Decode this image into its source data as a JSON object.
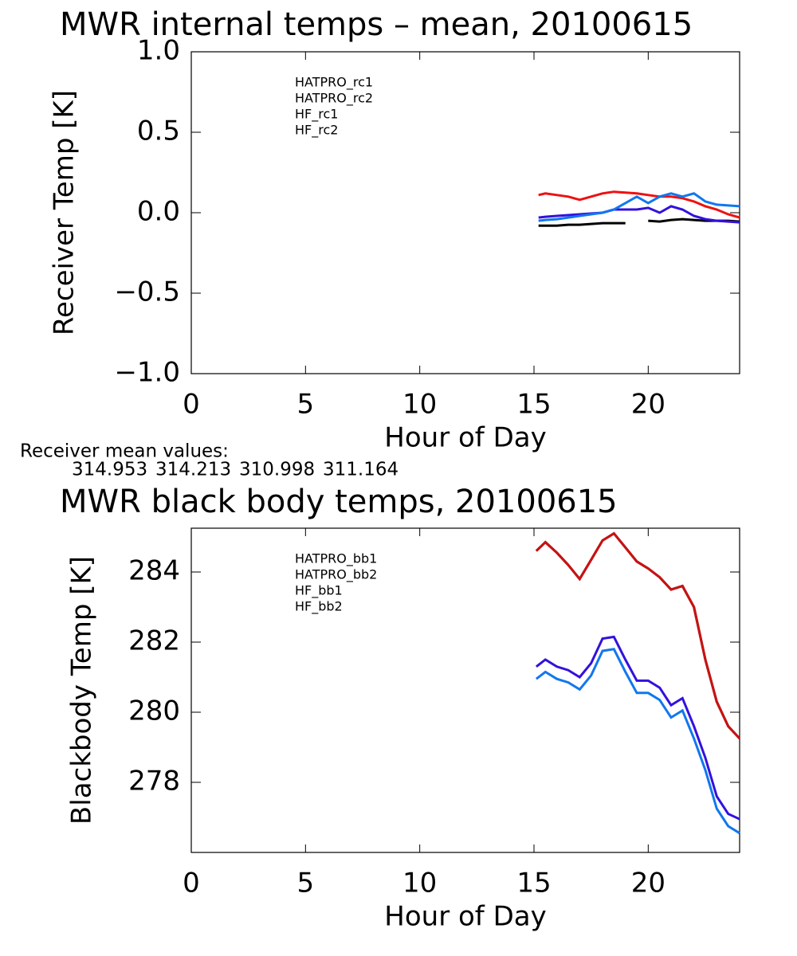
{
  "chart_data": [
    {
      "type": "line",
      "title": "MWR internal temps – mean, 20100615",
      "xlabel": "Hour of Day",
      "ylabel": "Receiver Temp [K]",
      "xlim": [
        0,
        24
      ],
      "xticks": [
        0,
        5,
        10,
        15,
        20
      ],
      "ylim": [
        -1.0,
        1.0
      ],
      "yticks": [
        {
          "value": 1.0,
          "label": "1.0"
        },
        0.5,
        {
          "value": 0.0,
          "label": "0.0"
        },
        {
          "value": -0.5,
          "label": "−0.5"
        },
        {
          "value": -1.0,
          "label": "−1.0"
        }
      ],
      "x": [
        15.2,
        15.5,
        16,
        16.5,
        17,
        17.5,
        18,
        18.5,
        19,
        19.5,
        20,
        20.5,
        21,
        21.5,
        22,
        22.5,
        23,
        23.5,
        24
      ],
      "series": [
        {
          "name": "HATPRO_rc1",
          "color": "#000000",
          "values": [
            -0.08,
            -0.08,
            -0.08,
            -0.075,
            -0.075,
            -0.07,
            -0.065,
            -0.065,
            -0.065,
            null,
            -0.05,
            -0.055,
            -0.045,
            -0.04,
            -0.045,
            -0.05,
            -0.05,
            -0.05,
            -0.055
          ]
        },
        {
          "name": "HATPRO_rc2",
          "color": "#ee1111",
          "values": [
            0.11,
            0.12,
            0.11,
            0.1,
            0.08,
            0.1,
            0.12,
            0.13,
            0.125,
            0.12,
            0.11,
            0.1,
            0.1,
            0.09,
            0.07,
            0.04,
            0.02,
            -0.01,
            -0.03
          ]
        },
        {
          "name": "HF_rc1",
          "color": "#3311dd",
          "values": [
            -0.03,
            -0.025,
            -0.02,
            -0.015,
            -0.01,
            -0.005,
            0.0,
            0.02,
            0.02,
            0.02,
            0.03,
            0.0,
            0.04,
            0.02,
            -0.02,
            -0.04,
            -0.05,
            -0.055,
            -0.06
          ]
        },
        {
          "name": "HF_rc2",
          "color": "#1177ee",
          "values": [
            -0.05,
            -0.045,
            -0.04,
            -0.03,
            -0.02,
            -0.01,
            0.0,
            0.02,
            0.06,
            0.1,
            0.06,
            0.1,
            0.12,
            0.1,
            0.12,
            0.07,
            0.05,
            0.045,
            0.04
          ]
        }
      ],
      "annotation": "Receiver mean values:",
      "mean_values": [
        314.953,
        314.213,
        310.998,
        311.164
      ]
    },
    {
      "type": "line",
      "title": "MWR black body temps, 20100615",
      "xlabel": "Hour of Day",
      "ylabel": "Blackbody Temp [K]",
      "xlim": [
        0,
        24
      ],
      "xticks": [
        0,
        5,
        10,
        15,
        20
      ],
      "ylim": [
        276,
        285.25
      ],
      "yticks": [
        278,
        280,
        282,
        284
      ],
      "x": [
        15.1,
        15.5,
        16,
        16.5,
        17,
        17.5,
        18,
        18.5,
        19,
        19.5,
        20,
        20.5,
        21,
        21.5,
        22,
        22.5,
        23,
        23.5,
        24
      ],
      "series": [
        {
          "name": "HATPRO_bb1",
          "color": "#000000",
          "values": [
            284.6,
            284.85,
            284.55,
            284.2,
            283.8,
            284.35,
            284.9,
            285.1,
            284.7,
            284.3,
            284.1,
            283.85,
            283.5,
            283.6,
            283.0,
            281.5,
            280.3,
            279.6,
            279.25
          ]
        },
        {
          "name": "HATPRO_bb2",
          "color": "#cc1111",
          "values": [
            284.6,
            284.85,
            284.55,
            284.2,
            283.8,
            284.35,
            284.9,
            285.1,
            284.7,
            284.3,
            284.1,
            283.85,
            283.5,
            283.6,
            283.0,
            281.5,
            280.3,
            279.6,
            279.25
          ]
        },
        {
          "name": "HF_bb1",
          "color": "#3311dd",
          "values": [
            281.3,
            281.5,
            281.3,
            281.2,
            281.0,
            281.4,
            282.1,
            282.15,
            281.5,
            280.9,
            280.9,
            280.7,
            280.2,
            280.4,
            279.6,
            278.7,
            277.6,
            277.1,
            276.95
          ]
        },
        {
          "name": "HF_bb2",
          "color": "#1177ee",
          "values": [
            280.95,
            281.15,
            280.95,
            280.85,
            280.65,
            281.05,
            281.75,
            281.8,
            281.15,
            280.55,
            280.55,
            280.35,
            279.85,
            280.05,
            279.25,
            278.35,
            277.25,
            276.75,
            276.55
          ]
        }
      ]
    }
  ]
}
